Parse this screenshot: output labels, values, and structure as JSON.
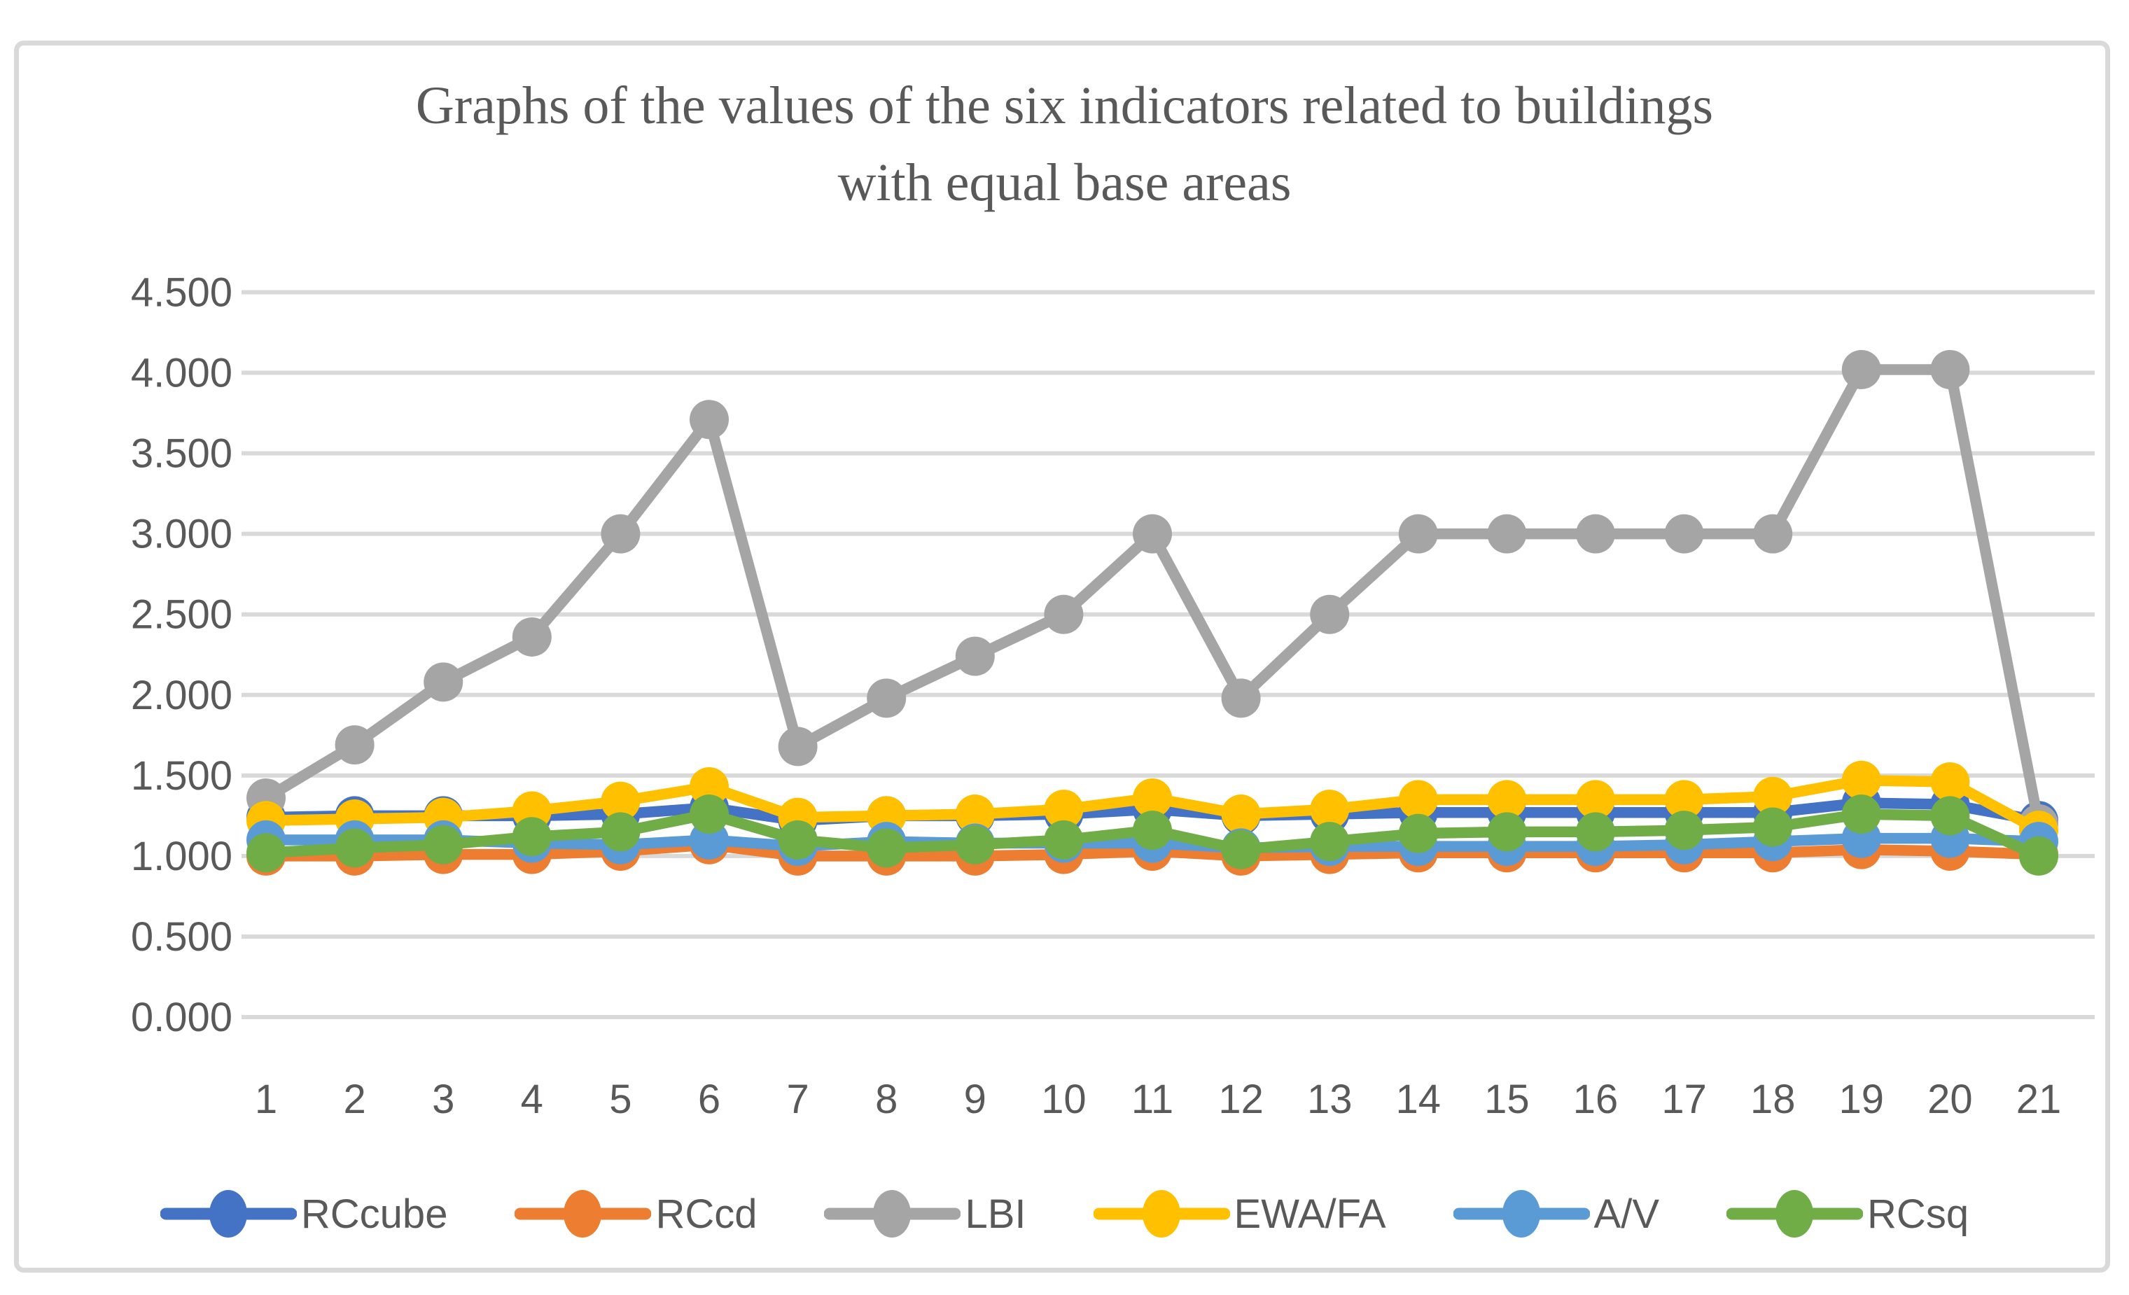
{
  "title": {
    "line1": "Graphs of the values of the six indicators related to buildings",
    "line2": "with equal base areas"
  },
  "frame_border_color": "#d9d9d9",
  "gridline_color": "#d9d9d9",
  "text_color": "#595959",
  "chart_data": {
    "type": "line",
    "title": "Graphs of the values of the six indicators related to buildings with equal base areas",
    "xlabel": "",
    "ylabel": "",
    "x": [
      1,
      2,
      3,
      4,
      5,
      6,
      7,
      8,
      9,
      10,
      11,
      12,
      13,
      14,
      15,
      16,
      17,
      18,
      19,
      20,
      21
    ],
    "x_tick_labels": [
      "1",
      "2",
      "3",
      "4",
      "5",
      "6",
      "7",
      "8",
      "9",
      "10",
      "11",
      "12",
      "13",
      "14",
      "15",
      "16",
      "17",
      "18",
      "19",
      "20",
      "21"
    ],
    "y_tick_labels": [
      "0.000",
      "0.500",
      "1.000",
      "1.500",
      "2.000",
      "2.500",
      "3.000",
      "3.500",
      "4.000",
      "4.500"
    ],
    "ylim": [
      0,
      4.5
    ],
    "grid": "horizontal",
    "legend_position": "bottom",
    "marker": "circle",
    "series": [
      {
        "name": "RCcube",
        "color": "#4472C4",
        "values": [
          1.24,
          1.25,
          1.25,
          1.25,
          1.26,
          1.3,
          1.22,
          1.25,
          1.25,
          1.26,
          1.29,
          1.25,
          1.26,
          1.27,
          1.27,
          1.27,
          1.27,
          1.27,
          1.33,
          1.32,
          1.22
        ]
      },
      {
        "name": "RCcd",
        "color": "#ED7D31",
        "values": [
          1.0,
          1.0,
          1.01,
          1.01,
          1.03,
          1.07,
          1.0,
          1.0,
          1.0,
          1.01,
          1.03,
          1.0,
          1.01,
          1.02,
          1.02,
          1.02,
          1.02,
          1.02,
          1.04,
          1.03,
          1.01
        ]
      },
      {
        "name": "LBI",
        "color": "#A5A5A5",
        "values": [
          1.36,
          1.69,
          2.08,
          2.36,
          3.0,
          3.71,
          1.68,
          1.98,
          2.24,
          2.5,
          3.0,
          1.98,
          2.5,
          3.0,
          3.0,
          3.0,
          3.0,
          3.0,
          4.02,
          4.02,
          1.2
        ]
      },
      {
        "name": "EWA/FA",
        "color": "#FFC000",
        "values": [
          1.22,
          1.23,
          1.24,
          1.28,
          1.34,
          1.43,
          1.24,
          1.25,
          1.26,
          1.29,
          1.36,
          1.26,
          1.29,
          1.35,
          1.35,
          1.35,
          1.35,
          1.37,
          1.47,
          1.46,
          1.16
        ]
      },
      {
        "name": "A/V",
        "color": "#5B9BD5",
        "values": [
          1.1,
          1.1,
          1.1,
          1.08,
          1.07,
          1.1,
          1.06,
          1.09,
          1.08,
          1.08,
          1.08,
          1.05,
          1.06,
          1.06,
          1.06,
          1.06,
          1.07,
          1.09,
          1.11,
          1.11,
          1.09
        ]
      },
      {
        "name": "RCsq",
        "color": "#70AD47",
        "values": [
          1.02,
          1.05,
          1.07,
          1.12,
          1.15,
          1.26,
          1.1,
          1.05,
          1.07,
          1.1,
          1.16,
          1.04,
          1.09,
          1.14,
          1.15,
          1.15,
          1.16,
          1.18,
          1.26,
          1.25,
          1.0
        ]
      }
    ]
  }
}
